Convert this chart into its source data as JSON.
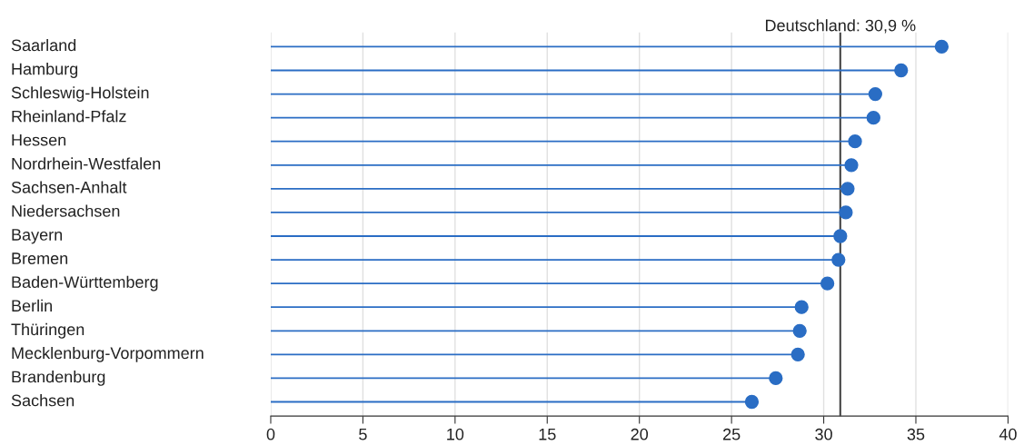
{
  "chart_data": {
    "type": "lollipop",
    "orientation": "horizontal",
    "categories": [
      "Saarland",
      "Hamburg",
      "Schleswig-Holstein",
      "Rheinland-Pfalz",
      "Hessen",
      "Nordrhein-Westfalen",
      "Sachsen-Anhalt",
      "Niedersachsen",
      "Bayern",
      "Bremen",
      "Baden-Württemberg",
      "Berlin",
      "Thüringen",
      "Mecklenburg-Vorpommern",
      "Brandenburg",
      "Sachsen"
    ],
    "values": [
      36.4,
      34.2,
      32.8,
      32.7,
      31.7,
      31.5,
      31.3,
      31.2,
      30.9,
      30.8,
      30.2,
      28.8,
      28.7,
      28.6,
      27.4,
      26.1
    ],
    "color": "#2a6dc4",
    "xlim": [
      0,
      40
    ],
    "xticks": [
      0,
      5,
      10,
      15,
      20,
      25,
      30,
      35,
      40
    ],
    "grid": "x",
    "marker": "circle",
    "ref_lines": [
      {
        "axis": "x",
        "value": 30.9,
        "label": "Deutschland: 30,9 %",
        "color": "#444444"
      }
    ]
  }
}
